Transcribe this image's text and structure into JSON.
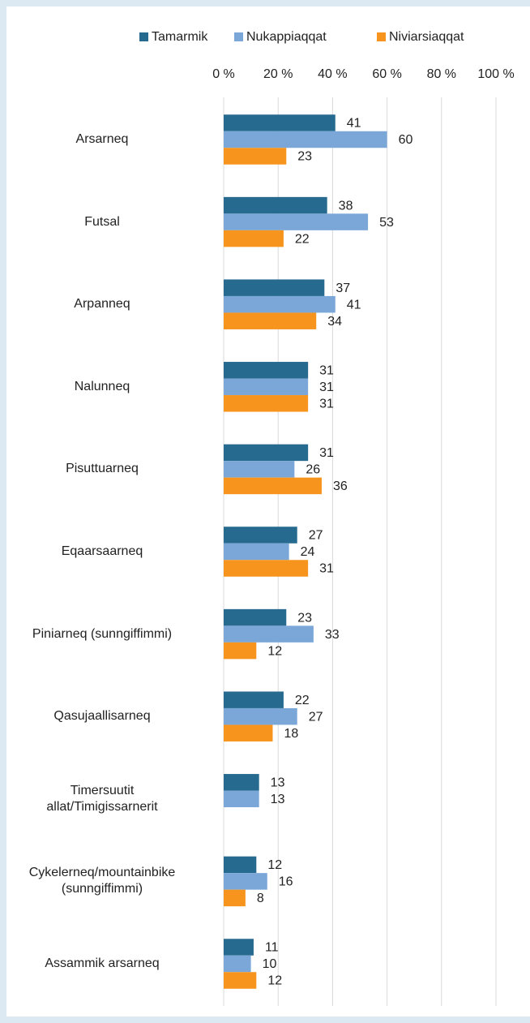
{
  "chart_data": {
    "type": "bar",
    "orientation": "horizontal",
    "categories": [
      "Arsarneq",
      "Futsal",
      "Arpanneq",
      "Nalunneq",
      "Pisuttuarneq",
      "Eqaarsaarneq",
      "Piniarneq (sunngiffimmi)",
      "Qasujaallisarneq",
      "Timersuutit\nallat/Timigissarnerit",
      "Cykelerneq/mountainbike\n(sunngiffimmi)",
      "Assammik arsarneq"
    ],
    "series": [
      {
        "name": "Tamarmik",
        "color": "#276a8f",
        "values": [
          41,
          38,
          37,
          31,
          31,
          27,
          23,
          22,
          13,
          12,
          11
        ]
      },
      {
        "name": "Nukappiaqqat",
        "color": "#7aa7d8",
        "values": [
          60,
          53,
          41,
          31,
          26,
          24,
          33,
          27,
          13,
          16,
          10
        ]
      },
      {
        "name": "Niviarsiaqqat",
        "color": "#f7941d",
        "values": [
          23,
          22,
          34,
          31,
          36,
          31,
          12,
          18,
          null,
          8,
          12
        ]
      }
    ],
    "xlim": [
      0,
      100
    ],
    "xticks": [
      {
        "value": 0,
        "label": "0 %"
      },
      {
        "value": 20,
        "label": "20 %"
      },
      {
        "value": 40,
        "label": "40 %"
      },
      {
        "value": 60,
        "label": "60 %"
      },
      {
        "value": 80,
        "label": "80 %"
      },
      {
        "value": 100,
        "label": "100 %"
      }
    ],
    "grid": true,
    "legend": "top"
  }
}
